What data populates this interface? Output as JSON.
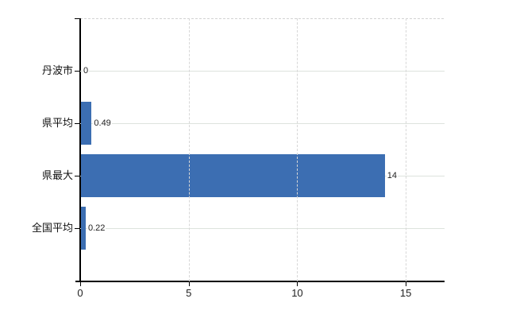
{
  "chart_data": {
    "type": "bar",
    "orientation": "horizontal",
    "title": "",
    "xlabel": "",
    "ylabel": "",
    "categories": [
      "丹波市",
      "県平均",
      "県最大",
      "全国平均"
    ],
    "values": [
      0,
      0.49,
      14,
      0.22
    ],
    "value_labels": [
      "0",
      "0.49",
      "14",
      "0.22"
    ],
    "xticks": [
      0,
      5,
      10,
      15
    ],
    "xtick_labels": [
      "0",
      "5",
      "10",
      "15"
    ],
    "xlim": [
      0,
      16.75
    ],
    "grid": true,
    "legend": false,
    "colors": {
      "bar": "#3c6eb2",
      "axis": "#000000",
      "horizontal_gridline": "#dde3dd",
      "vertical_gridline": "#d7d7d7",
      "top_border": "#d2d2d2",
      "text": "#222222",
      "background": "#ffffff"
    }
  }
}
